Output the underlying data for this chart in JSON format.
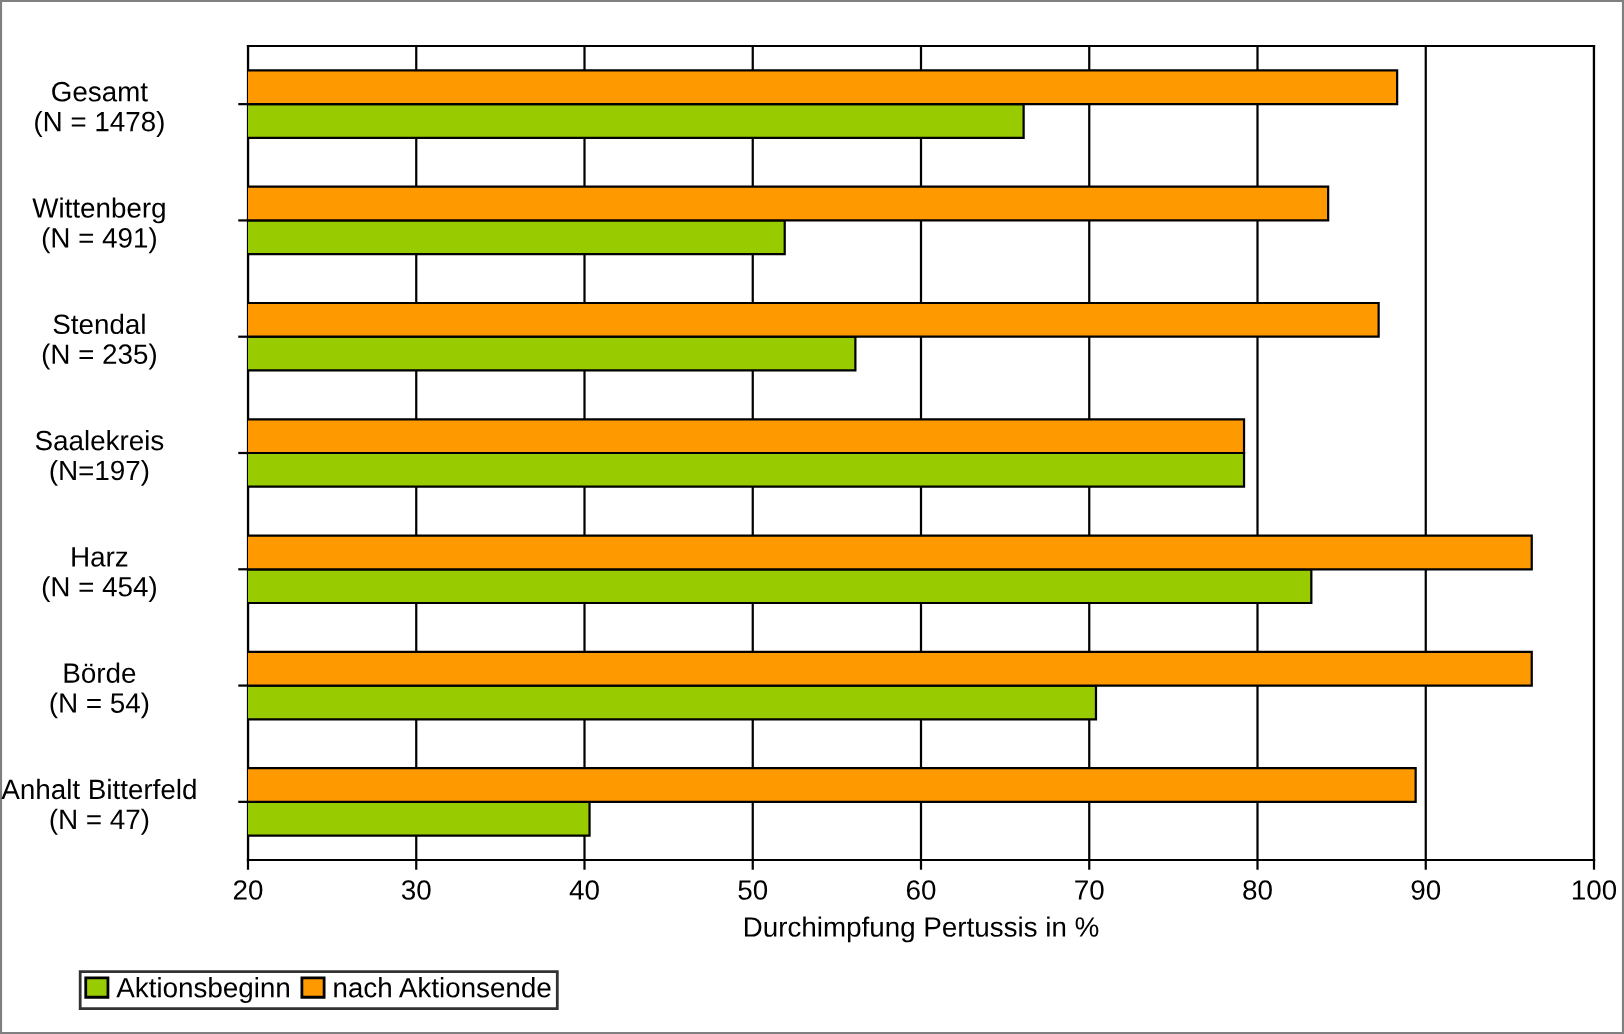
{
  "chart_data": {
    "type": "bar",
    "orientation": "horizontal",
    "xlabel": "Durchimpfung Pertussis in %",
    "categories": [
      "Gesamt\n(N = 1478)",
      "Wittenberg\n(N = 491)",
      "Stendal\n(N = 235)",
      "Saalekreis\n(N=197)",
      "Harz\n(N = 454)",
      "Börde\n(N = 54)",
      "Anhalt Bitterfeld\n(N = 47)"
    ],
    "series": [
      {
        "name": "Aktionsbeginn",
        "color": "#99cc00",
        "values": [
          66.1,
          51.9,
          56.1,
          79.2,
          83.2,
          70.4,
          40.3
        ]
      },
      {
        "name": "nach Aktionsende",
        "color": "#ff9900",
        "values": [
          88.3,
          84.2,
          87.2,
          79.2,
          96.3,
          96.3,
          89.4
        ]
      }
    ],
    "xlim": [
      20,
      100
    ],
    "xticks": [
      20,
      30,
      40,
      50,
      60,
      70,
      80,
      90,
      100
    ],
    "grid": "x",
    "legend": "bottom left"
  }
}
